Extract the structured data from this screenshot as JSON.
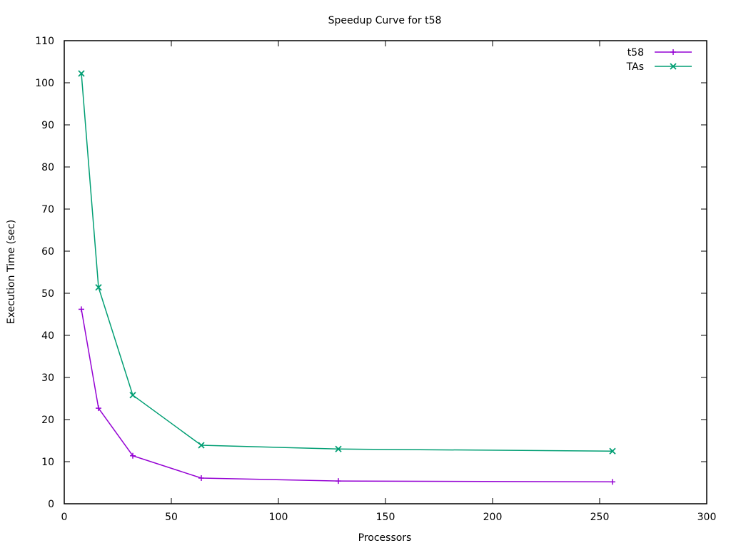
{
  "chart_data": {
    "type": "line",
    "title": "Speedup Curve for t58",
    "xlabel": "Processors",
    "ylabel": "Execution Time (sec)",
    "xlim": [
      0,
      300
    ],
    "ylim": [
      0,
      110
    ],
    "xticks": [
      "0",
      "50",
      "100",
      "150",
      "200",
      "250",
      "300"
    ],
    "yticks": [
      "0",
      "10",
      "20",
      "30",
      "40",
      "50",
      "60",
      "70",
      "80",
      "90",
      "100",
      "110"
    ],
    "grid": false,
    "legend_position": "top-right",
    "x": [
      8,
      16,
      32,
      64,
      128,
      256
    ],
    "series": [
      {
        "name": "t58",
        "values": [
          46.2,
          22.7,
          11.4,
          6.1,
          5.4,
          5.2
        ],
        "color": "#9400d3",
        "marker": "plus"
      },
      {
        "name": "TAs",
        "values": [
          102.2,
          51.4,
          25.8,
          13.9,
          13.0,
          12.5
        ],
        "color": "#009e73",
        "marker": "cross"
      }
    ]
  }
}
